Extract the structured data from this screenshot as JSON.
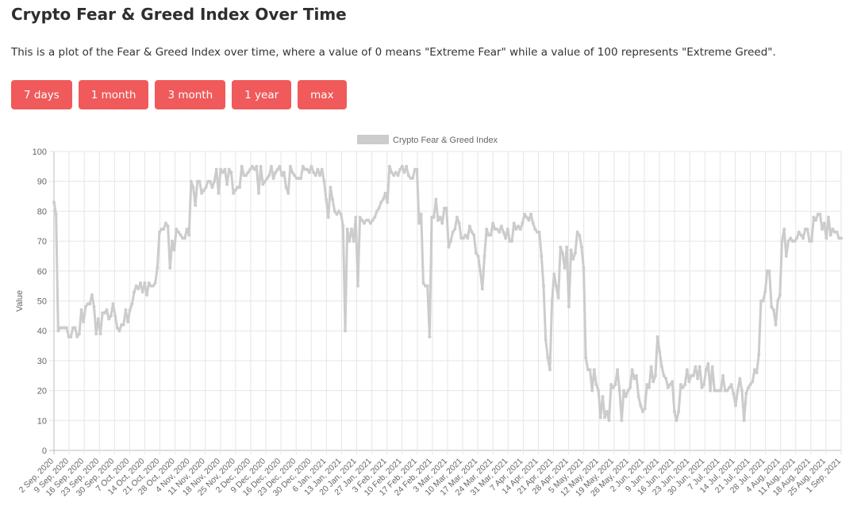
{
  "page": {
    "title": "Crypto Fear & Greed Index Over Time",
    "description": "This is a plot of the Fear & Greed Index over time, where a value of 0 means \"Extreme Fear\" while a value of 100 represents \"Extreme Greed\"."
  },
  "buttons": [
    {
      "label": "7 days"
    },
    {
      "label": "1 month"
    },
    {
      "label": "3 month"
    },
    {
      "label": "1 year"
    },
    {
      "label": "max"
    }
  ],
  "colors": {
    "button": "#f05a5b",
    "series": "#cccccc",
    "grid": "#e6e6e6"
  },
  "chart_data": {
    "type": "line",
    "title": "",
    "xlabel": "",
    "ylabel": "Value",
    "ylim": [
      0,
      100
    ],
    "yticks": [
      0,
      10,
      20,
      30,
      40,
      50,
      60,
      70,
      80,
      90,
      100
    ],
    "grid": true,
    "legend_position": "top",
    "x_tick_labels": [
      "2 Sep, 2020",
      "9 Sep, 2020",
      "16 Sep, 2020",
      "23 Sep, 2020",
      "30 Sep, 2020",
      "7 Oct, 2020",
      "14 Oct, 2020",
      "21 Oct, 2020",
      "28 Oct, 2020",
      "4 Nov, 2020",
      "11 Nov, 2020",
      "18 Nov, 2020",
      "25 Nov, 2020",
      "2 Dec, 2020",
      "9 Dec, 2020",
      "16 Dec, 2020",
      "23 Dec, 2020",
      "30 Dec, 2020",
      "6 Jan, 2021",
      "13 Jan, 2021",
      "20 Jan, 2021",
      "27 Jan, 2021",
      "3 Feb, 2021",
      "10 Feb, 2021",
      "17 Feb, 2021",
      "24 Feb, 2021",
      "3 Mar, 2021",
      "10 Mar, 2021",
      "17 Mar, 2021",
      "24 Mar, 2021",
      "31 Mar, 2021",
      "7 Apr, 2021",
      "14 Apr, 2021",
      "21 Apr, 2021",
      "28 Apr, 2021",
      "5 May, 2021",
      "12 May, 2021",
      "19 May, 2021",
      "26 May, 2021",
      "2 Jun, 2021",
      "9 Jun, 2021",
      "16 Jun, 2021",
      "23 Jun, 2021",
      "30 Jun, 2021",
      "7 Jul, 2021",
      "14 Jul, 2021",
      "21 Jul, 2021",
      "28 Jul, 2021",
      "4 Aug, 2021",
      "11 Aug, 2021",
      "18 Aug, 2021",
      "25 Aug, 2021",
      "1 Sep, 2021"
    ],
    "series": [
      {
        "name": "Crypto Fear & Greed Index",
        "values": [
          83,
          79,
          40,
          41,
          41,
          41,
          41,
          38,
          38,
          41,
          41,
          38,
          39,
          47,
          43,
          48,
          49,
          49,
          52,
          48,
          39,
          44,
          39,
          46,
          46,
          47,
          44,
          45,
          49,
          45,
          41,
          40,
          42,
          42,
          47,
          43,
          47,
          49,
          53,
          55,
          54,
          56,
          53,
          56,
          52,
          56,
          55,
          55,
          56,
          61,
          73,
          74,
          74,
          76,
          75,
          61,
          70,
          67,
          74,
          73,
          72,
          71,
          71,
          74,
          72,
          90,
          88,
          82,
          90,
          90,
          86,
          87,
          88,
          90,
          90,
          88,
          90,
          94,
          86,
          94,
          93,
          94,
          89,
          94,
          93,
          86,
          87,
          88,
          88,
          95,
          92,
          92,
          93,
          94,
          95,
          94,
          95,
          86,
          95,
          89,
          90,
          91,
          92,
          95,
          91,
          93,
          94,
          95,
          92,
          93,
          88,
          86,
          95,
          93,
          92,
          91,
          91,
          91,
          95,
          94,
          94,
          93,
          95,
          93,
          92,
          94,
          92,
          94,
          90,
          84,
          78,
          88,
          84,
          80,
          79,
          80,
          79,
          75,
          40,
          74,
          70,
          74,
          70,
          78,
          55,
          78,
          77,
          76,
          77,
          77,
          76,
          77,
          78,
          80,
          81,
          83,
          84,
          86,
          83,
          95,
          93,
          92,
          93,
          92,
          94,
          95,
          93,
          95,
          92,
          91,
          91,
          94,
          94,
          76,
          79,
          56,
          55,
          55,
          38,
          78,
          78,
          84,
          77,
          78,
          76,
          81,
          81,
          68,
          70,
          73,
          74,
          78,
          76,
          71,
          71,
          72,
          71,
          75,
          73,
          72,
          66,
          65,
          60,
          54,
          65,
          74,
          72,
          72,
          76,
          74,
          74,
          73,
          75,
          73,
          71,
          74,
          70,
          70,
          76,
          74,
          75,
          74,
          76,
          79,
          78,
          77,
          79,
          76,
          74,
          73,
          73,
          65,
          55,
          37,
          31,
          27,
          50,
          59,
          55,
          51,
          68,
          66,
          61,
          68,
          48,
          67,
          64,
          66,
          73,
          72,
          68,
          61,
          31,
          27,
          27,
          20,
          27,
          22,
          20,
          11,
          18,
          11,
          13,
          10,
          22,
          21,
          22,
          27,
          20,
          10,
          20,
          18,
          20,
          21,
          27,
          24,
          25,
          18,
          15,
          13,
          14,
          22,
          21,
          28,
          23,
          25,
          38,
          33,
          28,
          25,
          24,
          21,
          22,
          23,
          13,
          10,
          13,
          22,
          21,
          22,
          27,
          23,
          25,
          25,
          28,
          24,
          28,
          21,
          22,
          27,
          29,
          20,
          28,
          20,
          20,
          20,
          20,
          25,
          20,
          20,
          21,
          22,
          19,
          15,
          20,
          24,
          20,
          10,
          19,
          21,
          22,
          23,
          27,
          26,
          32,
          50,
          50,
          53,
          60,
          60,
          48,
          47,
          42,
          50,
          52,
          70,
          74,
          65,
          70,
          71,
          70,
          70,
          71,
          73,
          72,
          71,
          74,
          74,
          70,
          70,
          78,
          77,
          79,
          79,
          74,
          76,
          71,
          78,
          72,
          74,
          73,
          73,
          71,
          71
        ]
      }
    ]
  }
}
